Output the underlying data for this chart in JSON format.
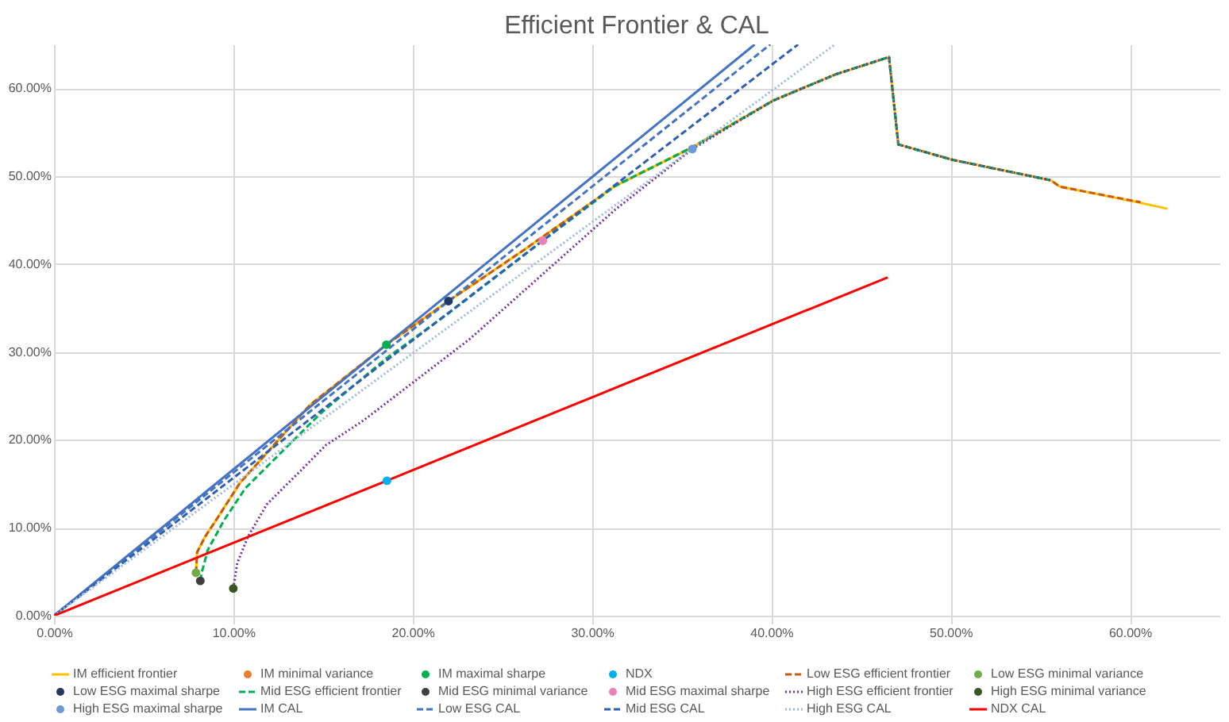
{
  "chart_data": {
    "type": "line",
    "title": "Efficient Frontier & CAL",
    "xlim": [
      0,
      65
    ],
    "ylim": [
      0,
      65
    ],
    "xticks": [
      {
        "value": 0,
        "label": "0.00%"
      },
      {
        "value": 10,
        "label": "10.00%"
      },
      {
        "value": 20,
        "label": "20.00%"
      },
      {
        "value": 30,
        "label": "30.00%"
      },
      {
        "value": 40,
        "label": "40.00%"
      },
      {
        "value": 50,
        "label": "50.00%"
      },
      {
        "value": 60,
        "label": "60.00%"
      }
    ],
    "yticks": [
      {
        "value": 0,
        "label": "0.00%"
      },
      {
        "value": 10,
        "label": "10.00%"
      },
      {
        "value": 20,
        "label": "20.00%"
      },
      {
        "value": 30,
        "label": "30.00%"
      },
      {
        "value": 40,
        "label": "40.00%"
      },
      {
        "value": 50,
        "label": "50.00%"
      },
      {
        "value": 60,
        "label": "60.00%"
      }
    ],
    "grid": true,
    "legend": "bottom",
    "series": [
      {
        "name": "IM efficient frontier",
        "type": "line",
        "color": "#ffc000",
        "line_style": "solid",
        "x": [
          7.92,
          7.98,
          8.43,
          9.03,
          10.37,
          14.26,
          18.54,
          22.0,
          26.2,
          31.3,
          35.6,
          40.1,
          43.6,
          46.57,
          47.09,
          50.13,
          55.6,
          56.1,
          60.3,
          62.1
        ],
        "values": [
          4.88,
          7.2,
          9.0,
          10.84,
          15.1,
          23.95,
          30.84,
          35.8,
          41.6,
          48.9,
          53.3,
          58.6,
          61.6,
          63.56,
          53.62,
          51.86,
          49.54,
          48.81,
          47.1,
          46.3
        ]
      },
      {
        "name": "IM minimal variance",
        "type": "scatter",
        "marker": "circle",
        "color": "#ed7d31",
        "x": [
          null
        ],
        "values": [
          null
        ]
      },
      {
        "name": "IM maximal sharpe",
        "type": "scatter",
        "marker": "circle",
        "color": "#00b050",
        "x": [
          18.54
        ],
        "values": [
          30.84
        ]
      },
      {
        "name": "NDX",
        "type": "scatter",
        "marker": "circle",
        "color": "#00b0f0",
        "x": [
          18.57
        ],
        "values": [
          15.36
        ]
      },
      {
        "name": "Low ESG efficient frontier",
        "type": "line",
        "color": "#c55a11",
        "line_style": "dashed",
        "x": [
          7.92,
          7.98,
          8.43,
          9.03,
          10.37,
          14.26,
          18.54,
          22.0,
          26.2,
          31.3,
          35.6,
          40.1,
          43.6,
          46.57,
          47.09,
          50.13,
          55.6,
          56.1,
          60.6
        ],
        "values": [
          4.88,
          7.2,
          9.0,
          10.84,
          15.1,
          23.95,
          30.84,
          35.8,
          41.6,
          48.9,
          53.3,
          58.6,
          61.6,
          63.56,
          53.62,
          51.86,
          49.54,
          48.81,
          47.05
        ]
      },
      {
        "name": "Low ESG minimal variance",
        "type": "scatter",
        "marker": "circle",
        "color": "#70ad47",
        "x": [
          7.92
        ],
        "values": [
          4.88
        ]
      },
      {
        "name": "Low ESG maximal sharpe",
        "type": "scatter",
        "marker": "circle",
        "color": "#203864",
        "x": [
          22.0
        ],
        "values": [
          35.8
        ]
      },
      {
        "name": "Mid ESG efficient frontier",
        "type": "line",
        "color": "#00b050",
        "line_style": "dashed",
        "x": [
          8.16,
          8.22,
          8.58,
          9.48,
          10.67,
          12.17,
          14.86,
          18.54,
          22.0,
          27.26,
          31.3,
          35.6,
          40.1,
          43.6,
          46.57,
          47.09,
          50.13,
          55.6
        ],
        "values": [
          3.96,
          4.75,
          7.5,
          10.84,
          14.5,
          17.55,
          23.0,
          29.3,
          34.4,
          42.66,
          48.9,
          53.3,
          58.6,
          61.6,
          63.56,
          53.62,
          51.86,
          49.54
        ]
      },
      {
        "name": "Mid ESG minimal variance",
        "type": "scatter",
        "marker": "circle",
        "color": "#404040",
        "x": [
          8.16
        ],
        "values": [
          3.96
        ]
      },
      {
        "name": "Mid ESG maximal sharpe",
        "type": "scatter",
        "marker": "circle",
        "color": "#e783b8",
        "x": [
          27.26
        ],
        "values": [
          42.66
        ]
      },
      {
        "name": "High ESG efficient frontier",
        "type": "line",
        "color": "#7030a0",
        "line_style": "dotted",
        "x": [
          10.0,
          10.22,
          10.82,
          11.87,
          13.66,
          15.16,
          17.25,
          23.2,
          31.3,
          35.6,
          40.1,
          43.6,
          46.57,
          47.09,
          50.13,
          55.6
        ],
        "values": [
          3.1,
          5.97,
          9.0,
          12.67,
          16.3,
          19.4,
          22.2,
          31.5,
          46.2,
          53.1,
          58.6,
          61.6,
          63.56,
          53.62,
          51.86,
          49.54
        ]
      },
      {
        "name": "High ESG minimal variance",
        "type": "scatter",
        "marker": "circle",
        "color": "#375623",
        "x": [
          10.0
        ],
        "values": [
          3.1
        ]
      },
      {
        "name": "High ESG maximal sharpe",
        "type": "scatter",
        "marker": "circle",
        "color": "#6f98d8",
        "x": [
          35.6
        ],
        "values": [
          53.1
        ]
      },
      {
        "name": "IM CAL",
        "type": "line",
        "color": "#4472c4",
        "line_style": "solid",
        "x": [
          0,
          39.08
        ],
        "values": [
          0,
          65
        ]
      },
      {
        "name": "Low ESG CAL",
        "type": "line",
        "color": "#4472c4",
        "line_style": "dashed",
        "x": [
          0,
          39.95
        ],
        "values": [
          0,
          65
        ]
      },
      {
        "name": "Mid ESG CAL",
        "type": "line",
        "color": "#2f5fb3",
        "line_style": "dashed",
        "x": [
          0,
          41.5
        ],
        "values": [
          0,
          65
        ]
      },
      {
        "name": "High ESG CAL",
        "type": "line",
        "color": "#9db6e3",
        "line_style": "dotted",
        "x": [
          0,
          43.56
        ],
        "values": [
          0,
          65
        ]
      },
      {
        "name": "NDX CAL",
        "type": "line",
        "color": "#ff0000",
        "line_style": "solid",
        "x": [
          0,
          46.5
        ],
        "values": [
          0,
          38.5
        ]
      }
    ]
  }
}
